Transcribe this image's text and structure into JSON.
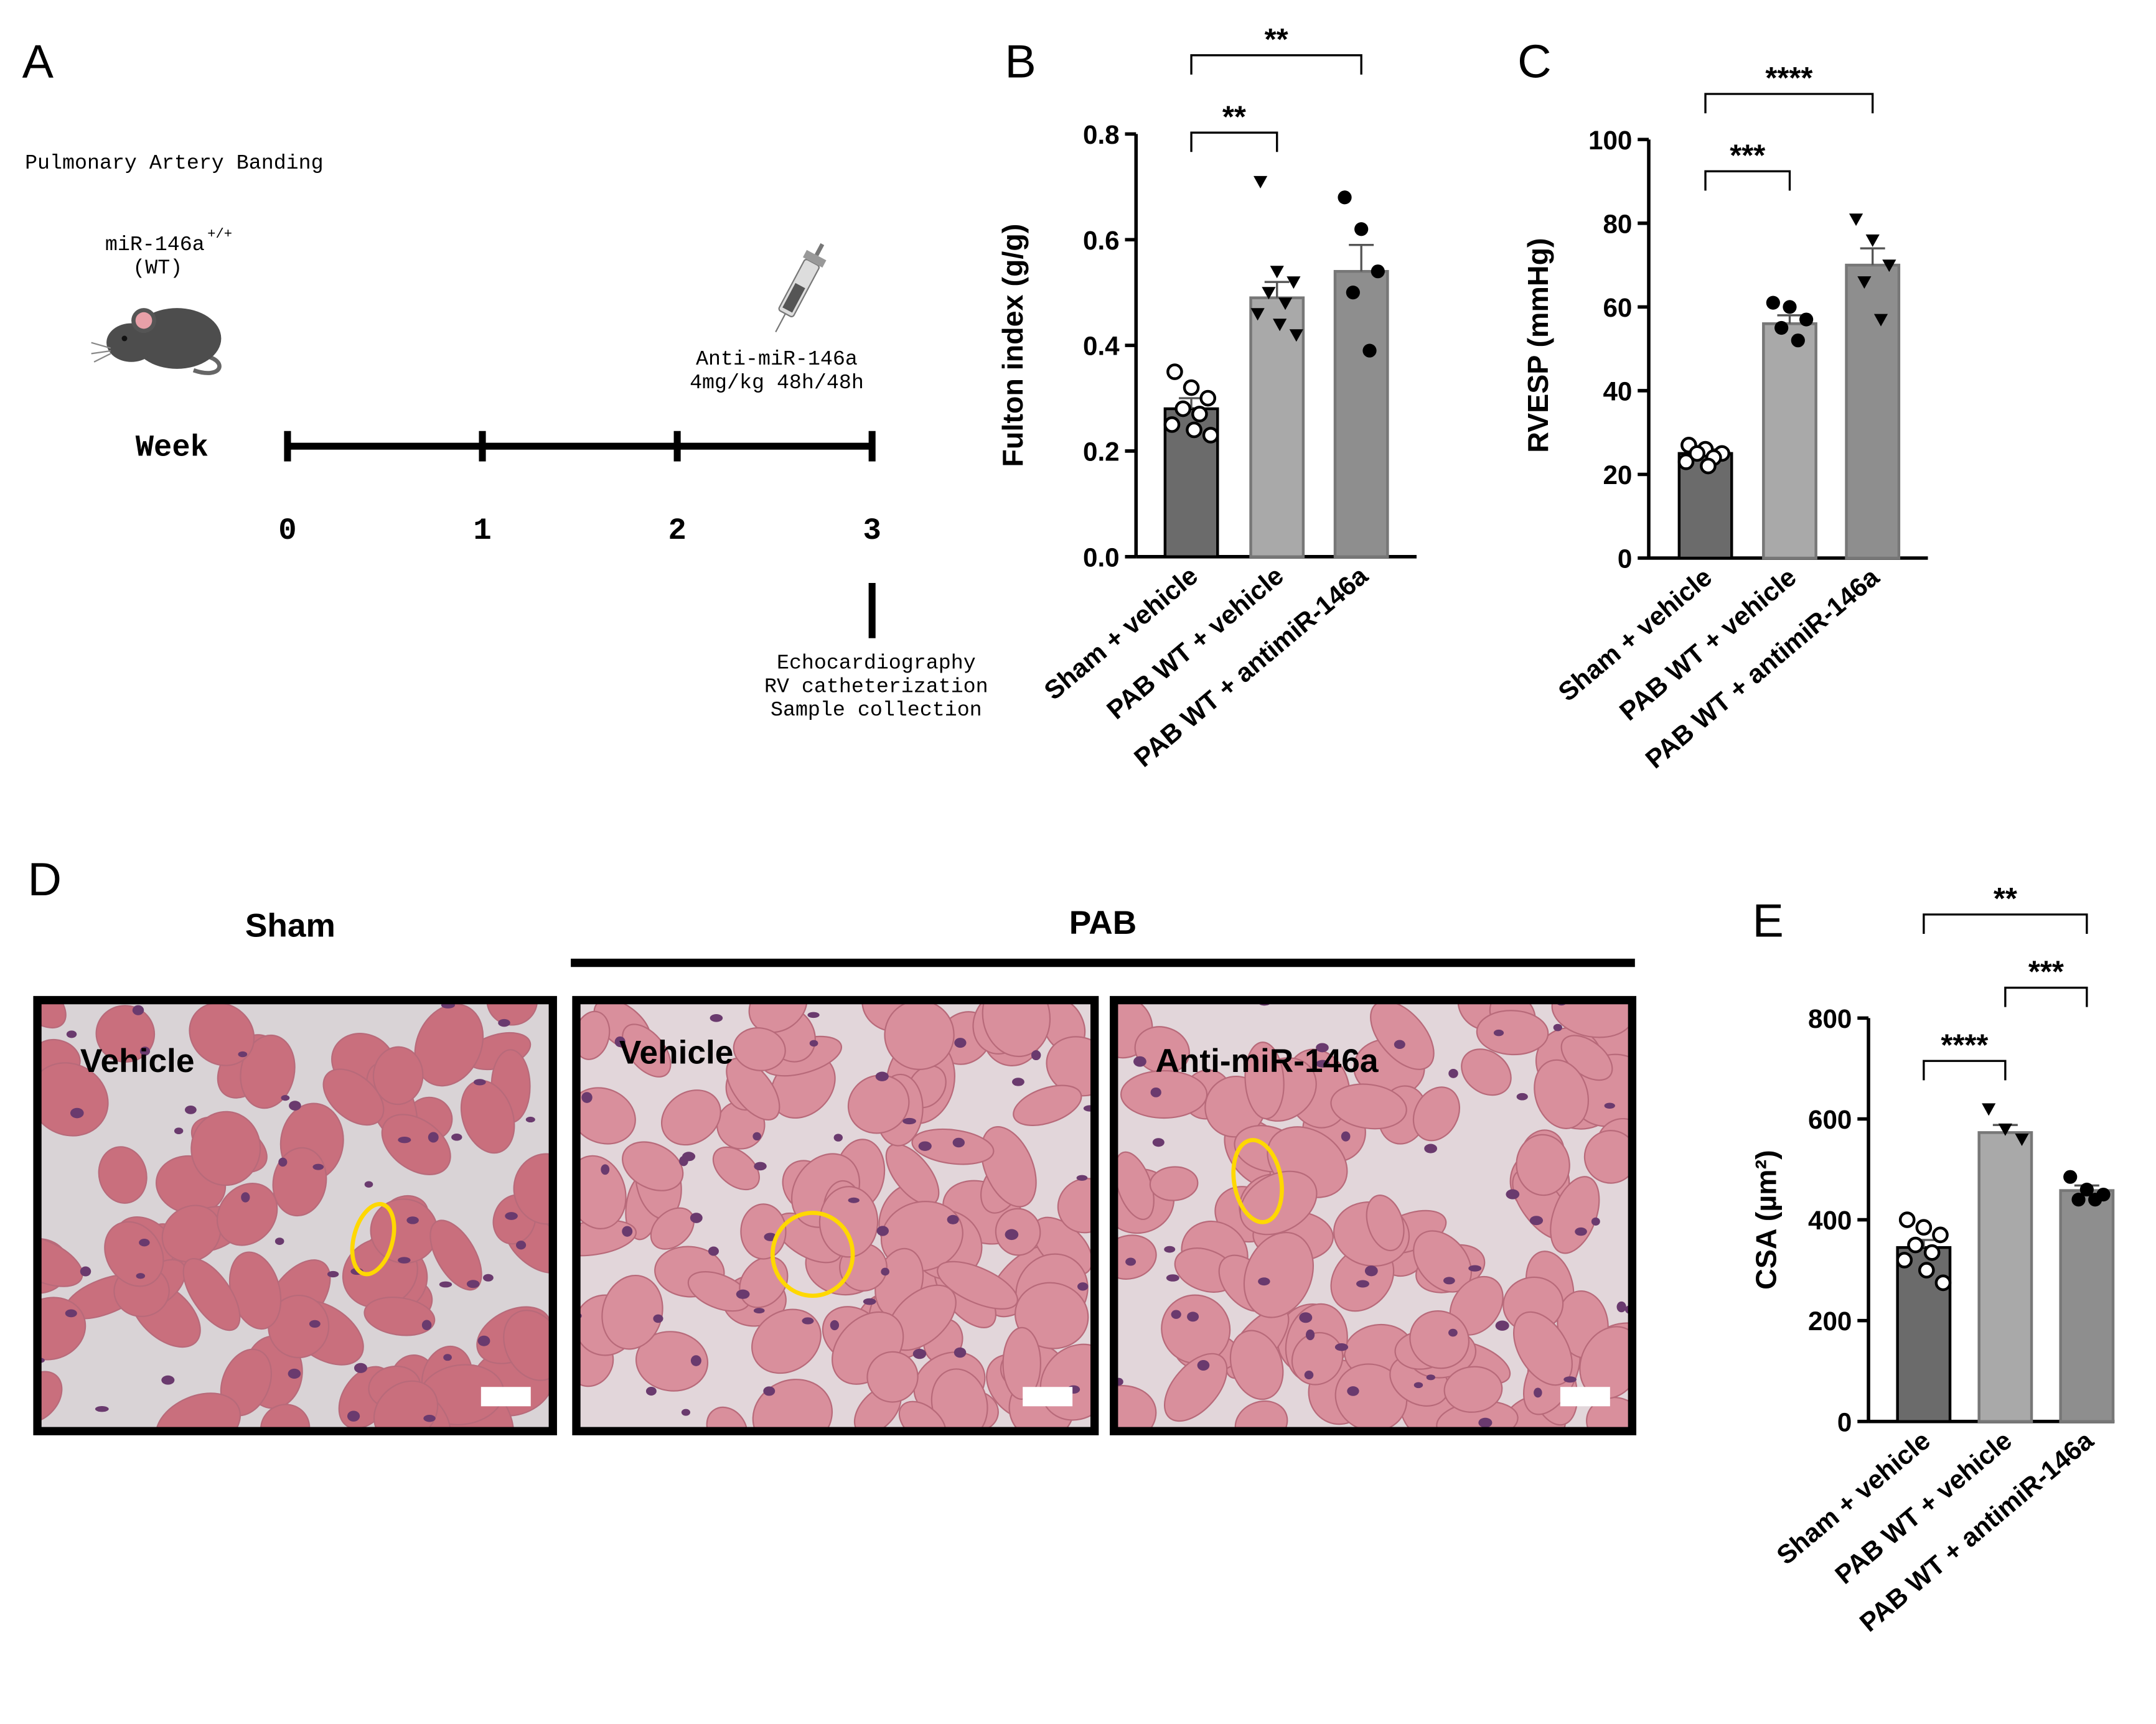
{
  "panel_a": {
    "label": "A",
    "title": "Pulmonary Artery Banding",
    "strain": "miR-146a",
    "strain_sup": "+/+",
    "strain_note": "(WT)",
    "treatment": [
      "Anti-miR-146a",
      "4mg/kg 48h/48h"
    ],
    "axis_label": "Week",
    "weeks": [
      0,
      1,
      2,
      3
    ],
    "endpoints": [
      "Echocardiography",
      "RV catheterization",
      "Sample collection"
    ]
  },
  "panel_d": {
    "label": "D",
    "groups": [
      "Sham",
      "PAB"
    ],
    "images": [
      "Vehicle",
      "Vehicle",
      "Anti-miR-146a"
    ]
  },
  "chart_data": [
    {
      "type": "bar",
      "panel": "B",
      "ylabel": "Fulton index (g/g)",
      "categories": [
        "Sham + vehicle",
        "PAB WT + vehicle",
        "PAB WT + antimiR-146a"
      ],
      "values": [
        0.28,
        0.49,
        0.54
      ],
      "errors": [
        0.02,
        0.03,
        0.05
      ],
      "colors": [
        "#6b6b6b",
        "#a9a9a9",
        "#8e8e8e"
      ],
      "markers": [
        "open-circle",
        "triangle",
        "circle"
      ],
      "points": [
        [
          0.35,
          0.32,
          0.3,
          0.28,
          0.27,
          0.25,
          0.24,
          0.23
        ],
        [
          0.71,
          0.54,
          0.52,
          0.5,
          0.48,
          0.46,
          0.44,
          0.42
        ],
        [
          0.68,
          0.62,
          0.54,
          0.5,
          0.39
        ]
      ],
      "ylim": [
        0,
        0.8
      ],
      "yticks": [
        {
          "value": 0,
          "label": "0.0"
        },
        0.2,
        0.4,
        0.6,
        0.8
      ],
      "significance": [
        {
          "from": 0,
          "to": 1,
          "label": "**"
        },
        {
          "from": 0,
          "to": 2,
          "label": "**"
        }
      ]
    },
    {
      "type": "bar",
      "panel": "C",
      "ylabel": "RVESP (mmHg)",
      "categories": [
        "Sham + vehicle",
        "PAB WT + vehicle",
        "PAB WT + antimiR-146a"
      ],
      "values": [
        25,
        56,
        70
      ],
      "errors": [
        1,
        2,
        4
      ],
      "colors": [
        "#6b6b6b",
        "#a9a9a9",
        "#8e8e8e"
      ],
      "markers": [
        "open-circle",
        "circle",
        "triangle"
      ],
      "points": [
        [
          27,
          26,
          25,
          25,
          24,
          23,
          22
        ],
        [
          61,
          60,
          57,
          55,
          52
        ],
        [
          81,
          76,
          70,
          66,
          57
        ]
      ],
      "ylim": [
        0,
        100
      ],
      "yticks": [
        0,
        20,
        40,
        60,
        80,
        100
      ],
      "significance": [
        {
          "from": 0,
          "to": 1,
          "label": "***"
        },
        {
          "from": 0,
          "to": 2,
          "label": "****"
        }
      ]
    },
    {
      "type": "bar",
      "panel": "E",
      "ylabel": "CSA (µm²)",
      "categories": [
        "Sham + vehicle",
        "PAB WT + vehicle",
        "PAB WT + antimiR-146a"
      ],
      "values": [
        345,
        573,
        458
      ],
      "errors": [
        15,
        15,
        10
      ],
      "colors": [
        "#6b6b6b",
        "#a9a9a9",
        "#8e8e8e"
      ],
      "markers": [
        "open-circle",
        "triangle",
        "circle"
      ],
      "points": [
        [
          400,
          385,
          370,
          350,
          335,
          320,
          300,
          275
        ],
        [
          620,
          580,
          560
        ],
        [
          485,
          460,
          450,
          440,
          440
        ]
      ],
      "ylim": [
        0,
        800
      ],
      "yticks": [
        0,
        200,
        400,
        600,
        800
      ],
      "significance": [
        {
          "from": 0,
          "to": 1,
          "label": "****"
        },
        {
          "from": 1,
          "to": 2,
          "label": "***"
        },
        {
          "from": 0,
          "to": 2,
          "label": "**"
        }
      ]
    }
  ]
}
